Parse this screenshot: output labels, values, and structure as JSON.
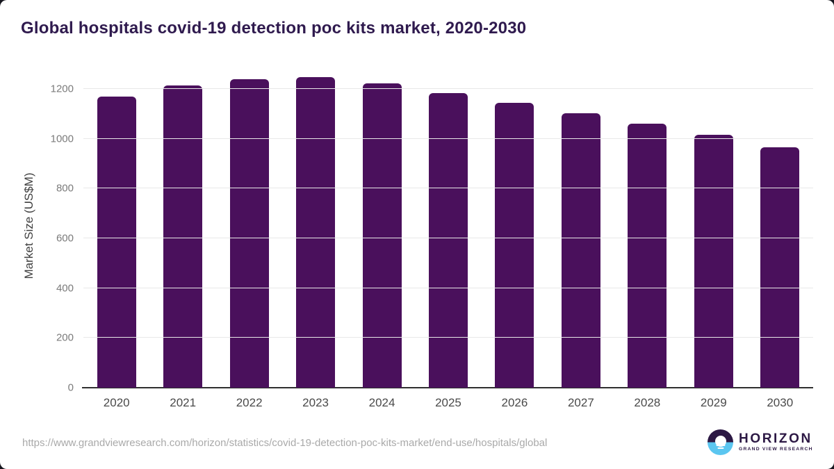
{
  "page": {
    "source_url": "https://www.grandviewresearch.com/horizon/statistics/covid-19-detection-poc-kits-market/end-use/hospitals/global"
  },
  "logo": {
    "name": "HORIZON",
    "subtitle": "GRAND VIEW RESEARCH",
    "icon": "horizon-sun-over-water-icon",
    "purple": "#2c1844",
    "blue": "#5bc6f0"
  },
  "colors": {
    "bar": "#4a105c",
    "title_text": "#2f1a4e",
    "gridline": "#e8e8e8",
    "axis_line": "#2f2f2f",
    "ytick_text": "#7b7b7b",
    "xtick_text": "#4a4a4a",
    "url_text": "#a9a9a9",
    "card_background": "#ffffff"
  },
  "chart_data": {
    "type": "bar",
    "title": "Global hospitals covid-19 detection poc kits market, 2020-2030",
    "xlabel": "",
    "ylabel": "Market Size (US$M)",
    "categories": [
      "2020",
      "2021",
      "2022",
      "2023",
      "2024",
      "2025",
      "2026",
      "2027",
      "2028",
      "2029",
      "2030"
    ],
    "values": [
      1170,
      1213,
      1240,
      1247,
      1221,
      1184,
      1144,
      1101,
      1060,
      1015,
      967
    ],
    "ylim": [
      0,
      1200
    ],
    "ytick_interval": 200,
    "yticks": [
      0,
      200,
      400,
      600,
      800,
      1000,
      1200
    ],
    "grid": true,
    "legend": "none",
    "bar_color": "#4a105c"
  }
}
